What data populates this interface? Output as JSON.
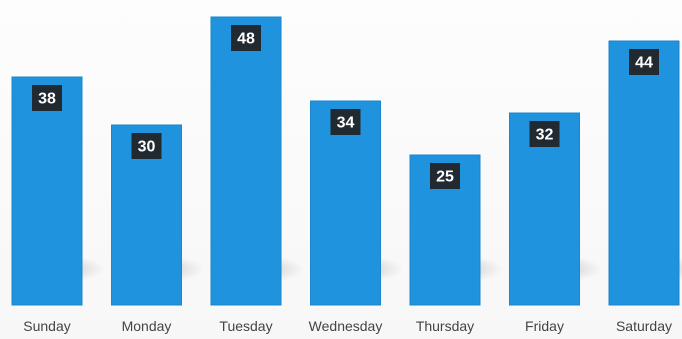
{
  "chart_data": {
    "type": "bar",
    "title": "",
    "xlabel": "",
    "ylabel": "",
    "categories": [
      "Sunday",
      "Monday",
      "Tuesday",
      "Wednesday",
      "Thursday",
      "Friday",
      "Saturday"
    ],
    "values": [
      38,
      30,
      48,
      34,
      25,
      32,
      44
    ],
    "ylim": [
      0,
      50
    ],
    "grid": false,
    "legend": "none",
    "data_labels": true
  },
  "colors": {
    "bar": "#1f93dd",
    "value_label_background": "#222a31",
    "value_label_text": "#ffffff"
  }
}
